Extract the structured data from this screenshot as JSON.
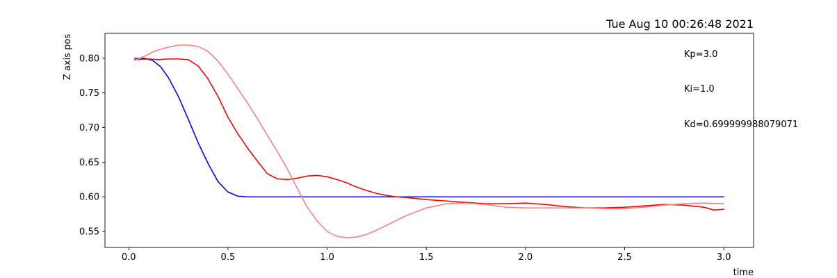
{
  "chart_data": {
    "type": "line",
    "title": "Tue Aug 10 00:26:48 2021",
    "xlabel": "time",
    "ylabel": "Z axis pos",
    "xlim": [
      -0.12,
      3.15
    ],
    "ylim": [
      0.527,
      0.836
    ],
    "xticks": [
      0.0,
      0.5,
      1.0,
      1.5,
      2.0,
      2.5,
      3.0
    ],
    "xtick_labels": [
      "0.0",
      "0.5",
      "1.0",
      "1.5",
      "2.0",
      "2.5",
      "3.0"
    ],
    "yticks": [
      0.55,
      0.6,
      0.65,
      0.7,
      0.75,
      0.8
    ],
    "ytick_labels": [
      "0.55",
      "0.60",
      "0.65",
      "0.70",
      "0.75",
      "0.80"
    ],
    "grid": false,
    "annotations": [
      "Kp=3.0",
      "Ki=1.0",
      "Kd=0.699999988079071"
    ],
    "series": [
      {
        "color": "#0000ff",
        "x": [
          0.03,
          0.08,
          0.12,
          0.16,
          0.2,
          0.25,
          0.3,
          0.35,
          0.4,
          0.45,
          0.5,
          0.55,
          0.6,
          0.8,
          1.0,
          1.5,
          2.0,
          2.5,
          3.0
        ],
        "y": [
          0.8,
          0.8,
          0.797,
          0.788,
          0.772,
          0.745,
          0.712,
          0.678,
          0.648,
          0.622,
          0.607,
          0.601,
          0.6,
          0.6,
          0.6,
          0.6,
          0.6,
          0.6,
          0.6
        ]
      },
      {
        "color": "#ff0000",
        "x": [
          0.03,
          0.1,
          0.15,
          0.2,
          0.25,
          0.3,
          0.35,
          0.4,
          0.45,
          0.5,
          0.55,
          0.6,
          0.65,
          0.7,
          0.75,
          0.8,
          0.85,
          0.9,
          0.95,
          1.0,
          1.05,
          1.1,
          1.15,
          1.2,
          1.25,
          1.3,
          1.35,
          1.4,
          1.5,
          1.6,
          1.7,
          1.8,
          1.9,
          2.0,
          2.1,
          2.2,
          2.3,
          2.4,
          2.5,
          2.6,
          2.7,
          2.8,
          2.9,
          2.95,
          3.0
        ],
        "y": [
          0.798,
          0.799,
          0.798,
          0.799,
          0.799,
          0.798,
          0.789,
          0.77,
          0.745,
          0.715,
          0.691,
          0.67,
          0.651,
          0.633,
          0.626,
          0.625,
          0.627,
          0.63,
          0.631,
          0.629,
          0.625,
          0.62,
          0.614,
          0.609,
          0.605,
          0.602,
          0.6,
          0.599,
          0.596,
          0.594,
          0.592,
          0.59,
          0.59,
          0.591,
          0.589,
          0.586,
          0.584,
          0.584,
          0.585,
          0.587,
          0.589,
          0.588,
          0.585,
          0.581,
          0.582
        ]
      },
      {
        "color": "#ff8080",
        "x": [
          0.03,
          0.08,
          0.12,
          0.16,
          0.2,
          0.25,
          0.3,
          0.35,
          0.4,
          0.45,
          0.5,
          0.55,
          0.6,
          0.65,
          0.7,
          0.75,
          0.8,
          0.85,
          0.9,
          0.95,
          1.0,
          1.05,
          1.1,
          1.15,
          1.2,
          1.25,
          1.3,
          1.35,
          1.4,
          1.5,
          1.6,
          1.7,
          1.8,
          1.9,
          2.0,
          2.1,
          2.2,
          2.3,
          2.4,
          2.5,
          2.6,
          2.7,
          2.8,
          2.9,
          3.0
        ],
        "y": [
          0.797,
          0.803,
          0.809,
          0.813,
          0.816,
          0.819,
          0.819,
          0.817,
          0.81,
          0.796,
          0.777,
          0.756,
          0.735,
          0.712,
          0.688,
          0.665,
          0.64,
          0.612,
          0.585,
          0.565,
          0.55,
          0.543,
          0.541,
          0.542,
          0.546,
          0.552,
          0.559,
          0.566,
          0.573,
          0.584,
          0.59,
          0.591,
          0.589,
          0.585,
          0.584,
          0.584,
          0.584,
          0.584,
          0.583,
          0.583,
          0.585,
          0.588,
          0.59,
          0.591,
          0.59
        ]
      }
    ]
  }
}
